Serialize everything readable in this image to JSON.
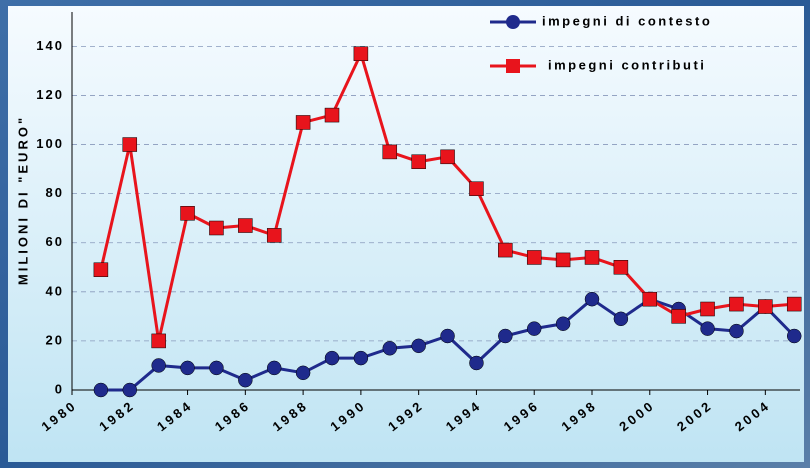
{
  "chart_data": {
    "type": "line",
    "y_label": "MILIONI DI \"EURO\"",
    "x": [
      1981,
      1982,
      1983,
      1984,
      1985,
      1986,
      1987,
      1988,
      1989,
      1990,
      1991,
      1992,
      1993,
      1994,
      1995,
      1996,
      1997,
      1998,
      1999,
      2000,
      2001,
      2002,
      2003,
      2004,
      2005
    ],
    "series": [
      {
        "name": "impegni di contesto",
        "color": "#1f2a8c",
        "marker": "circle",
        "values": [
          0,
          0,
          10,
          9,
          9,
          4,
          9,
          7,
          13,
          13,
          17,
          18,
          22,
          11,
          22,
          25,
          27,
          37,
          29,
          37,
          33,
          25,
          24,
          34,
          22
        ]
      },
      {
        "name": "impegni contributi",
        "color": "#e8141c",
        "marker": "square",
        "values": [
          49,
          100,
          20,
          72,
          66,
          67,
          63,
          109,
          112,
          137,
          97,
          93,
          95,
          82,
          57,
          54,
          53,
          54,
          50,
          37,
          30,
          33,
          35,
          34,
          35
        ]
      }
    ],
    "xlim": [
      1980,
      2005.2
    ],
    "xticks": [
      1980,
      1982,
      1984,
      1986,
      1988,
      1990,
      1992,
      1994,
      1996,
      1998,
      2000,
      2002,
      2004
    ],
    "ylim": [
      0,
      154
    ],
    "yticks": [
      0,
      20,
      40,
      60,
      80,
      100,
      120,
      140
    ],
    "grid": true,
    "legend": "top-right"
  }
}
